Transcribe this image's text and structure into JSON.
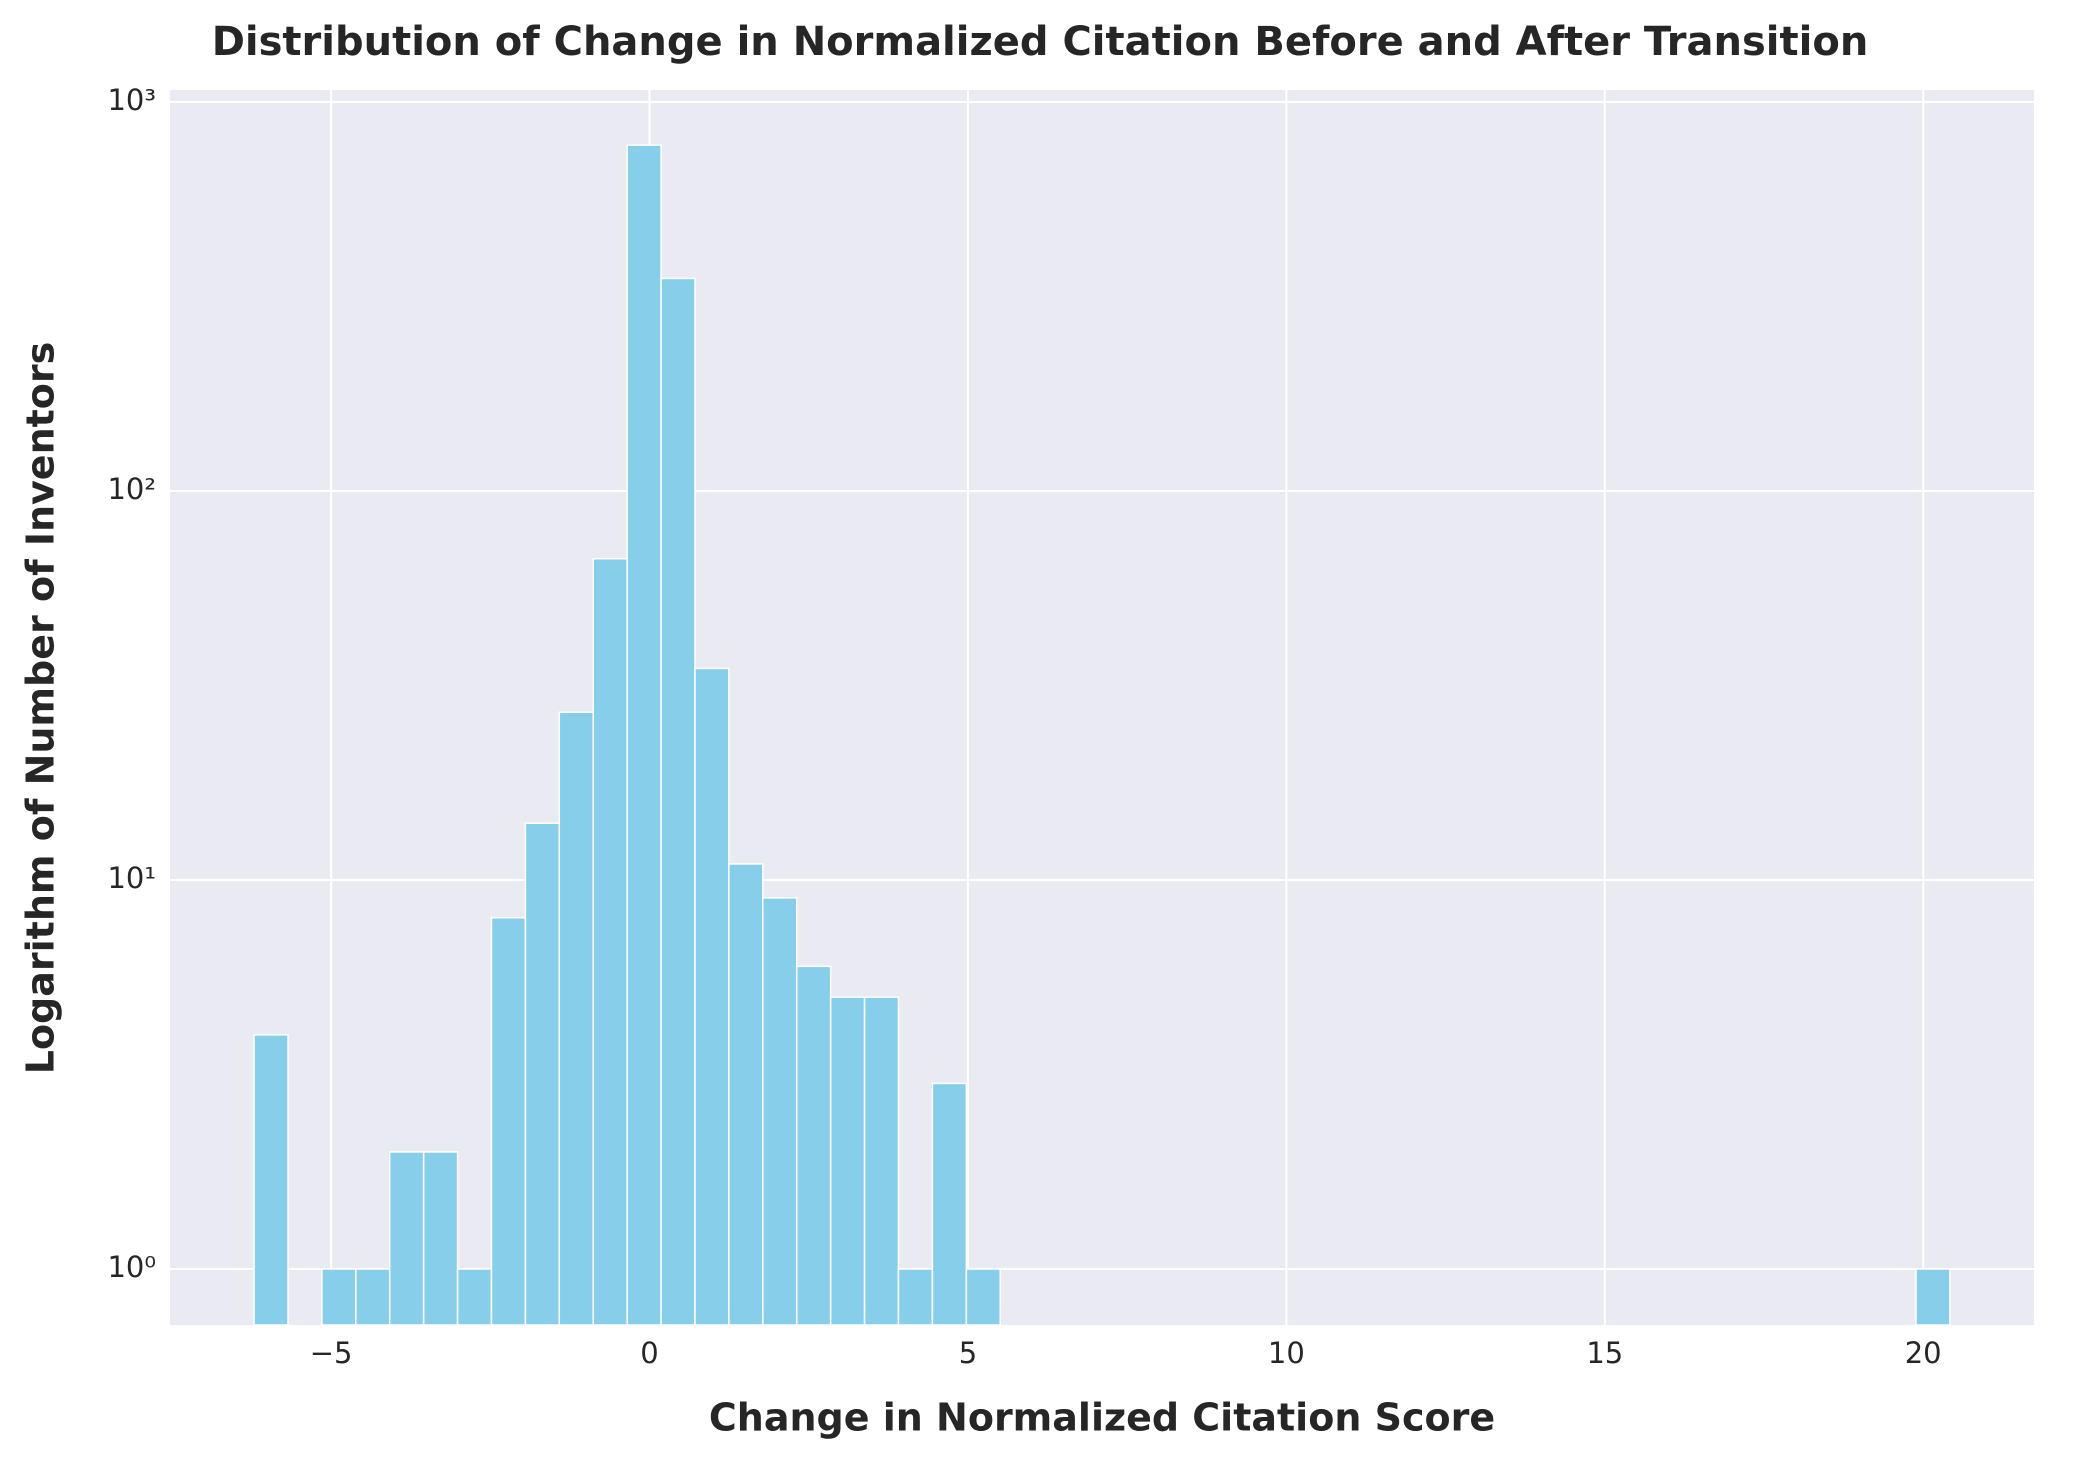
{
  "chart_data": {
    "type": "histogram",
    "title": "Distribution of Change in Normalized Citation Before and After Transition",
    "x_label": "Change in Normalized Citation Score",
    "y_label": "Logarithm of Number of Inventors",
    "bins": [
      -6.21,
      -5.677,
      -5.145,
      -4.612,
      -4.08,
      -3.547,
      -3.014,
      -2.482,
      -1.949,
      -1.417,
      -0.884,
      -0.351,
      0.181,
      0.714,
      1.246,
      1.779,
      2.312,
      2.844,
      3.377,
      3.909,
      4.442,
      4.975,
      5.507,
      6.04,
      6.572,
      7.105,
      7.638,
      8.17,
      8.703,
      9.235,
      9.768,
      10.301,
      10.833,
      11.366,
      11.898,
      12.431,
      12.964,
      13.496,
      14.029,
      14.561,
      15.094,
      15.627,
      16.159,
      16.692,
      17.224,
      17.757,
      18.29,
      18.822,
      19.355,
      19.887,
      20.42
    ],
    "values": [
      4,
      0,
      1,
      1,
      2,
      2,
      1,
      8,
      14,
      27,
      67,
      775,
      352,
      35,
      11,
      9,
      6,
      5,
      5,
      1,
      3,
      1,
      0,
      0,
      0,
      0,
      0,
      0,
      0,
      0,
      0,
      0,
      0,
      0,
      0,
      0,
      0,
      0,
      0,
      0,
      0,
      0,
      0,
      0,
      0,
      0,
      0,
      0,
      0,
      1
    ],
    "color": "#87ceeb",
    "xlim": [
      -7.53,
      21.74
    ],
    "xticks": [
      {
        "value": -5,
        "label": "−5"
      },
      0,
      5,
      10,
      15,
      20
    ],
    "ylim": [
      0.718,
      1074
    ],
    "yticks": [
      {
        "value": 1,
        "label": "10⁰"
      },
      {
        "value": 10,
        "label": "10¹"
      },
      {
        "value": 100,
        "label": "10²"
      },
      {
        "value": 1000,
        "label": "10³"
      }
    ],
    "y_scale": "log",
    "grid": true
  }
}
